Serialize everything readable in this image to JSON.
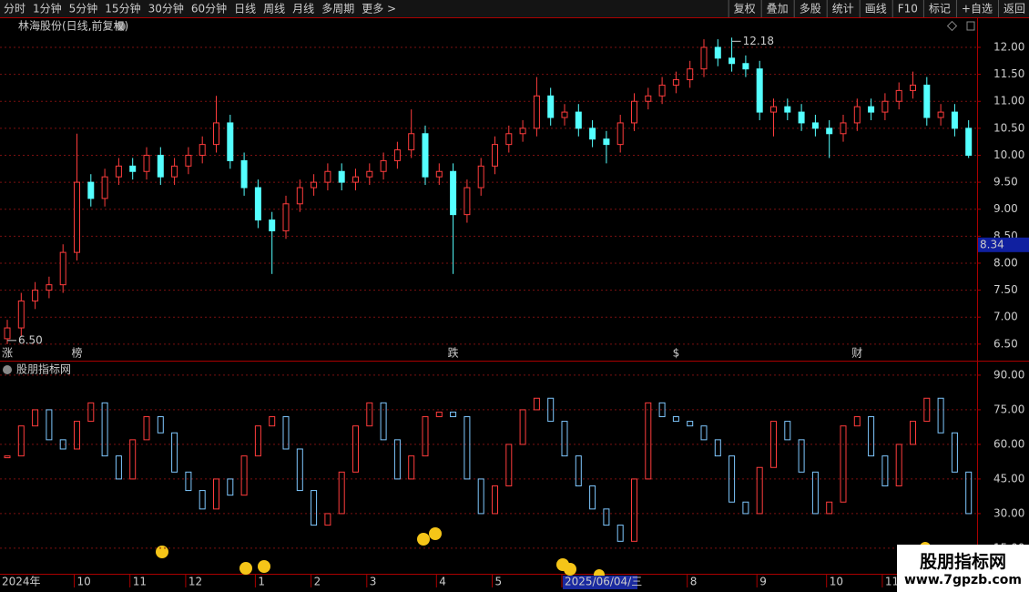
{
  "toolbar": {
    "left": [
      "分时",
      "1分钟",
      "5分钟",
      "15分钟",
      "30分钟",
      "60分钟",
      "日线",
      "周线",
      "月线",
      "多周期",
      "更多 >"
    ],
    "active": 6,
    "right": [
      "复权",
      "叠加",
      "多股",
      "统计",
      "画线",
      "F10",
      "标记",
      "+自选",
      "返回"
    ]
  },
  "watermark": {
    "title": "股朋指标网",
    "url": "www.7gpzb.com"
  },
  "chart_data": [
    {
      "type": "candlestick",
      "title": "林海股份(日线,前复权)",
      "categories": [
        "2024年",
        null,
        null,
        null,
        null,
        "10",
        null,
        null,
        null,
        "11",
        null,
        null,
        null,
        "12",
        null,
        null,
        null,
        null,
        "1",
        null,
        null,
        null,
        "2",
        null,
        null,
        null,
        "3",
        null,
        null,
        null,
        null,
        "4",
        null,
        null,
        null,
        "5",
        null,
        null,
        null,
        null,
        "2025/06/04/三",
        null,
        null,
        null,
        null,
        null,
        null,
        null,
        null,
        "8",
        null,
        null,
        null,
        null,
        "9",
        null,
        null,
        null,
        null,
        "10",
        null,
        null,
        null,
        "11",
        null,
        null,
        null,
        null,
        null,
        null
      ],
      "selected_index": 40,
      "open": [
        6.6,
        6.8,
        7.3,
        7.5,
        7.6,
        8.2,
        9.5,
        9.2,
        9.6,
        9.8,
        9.7,
        10.0,
        9.6,
        9.8,
        10.0,
        10.2,
        10.6,
        9.9,
        9.4,
        8.8,
        8.6,
        9.1,
        9.4,
        9.5,
        9.7,
        9.5,
        9.6,
        9.7,
        9.9,
        10.1,
        10.4,
        9.6,
        9.7,
        8.9,
        9.4,
        9.8,
        10.2,
        10.4,
        10.5,
        11.1,
        10.7,
        10.8,
        10.5,
        10.3,
        10.2,
        10.6,
        11.0,
        11.1,
        11.3,
        11.4,
        11.6,
        12.0,
        11.8,
        11.7,
        11.6,
        10.8,
        10.9,
        10.8,
        10.6,
        10.5,
        10.4,
        10.6,
        10.9,
        10.8,
        11.0,
        11.2,
        11.3,
        10.7,
        10.8,
        10.5
      ],
      "high": [
        6.95,
        7.45,
        7.65,
        7.75,
        8.35,
        10.4,
        9.65,
        9.75,
        9.95,
        9.95,
        10.15,
        10.15,
        9.95,
        10.15,
        10.35,
        11.1,
        10.75,
        10.05,
        9.55,
        8.95,
        9.25,
        9.55,
        9.65,
        9.85,
        9.85,
        9.75,
        9.85,
        10.05,
        10.25,
        10.85,
        10.55,
        9.85,
        9.85,
        9.55,
        9.95,
        10.35,
        10.55,
        10.65,
        11.45,
        11.25,
        10.95,
        10.95,
        10.65,
        10.45,
        10.75,
        11.15,
        11.25,
        11.45,
        11.55,
        11.75,
        12.15,
        12.15,
        12.18,
        11.85,
        11.75,
        11.05,
        11.05,
        10.95,
        10.75,
        10.65,
        10.75,
        11.05,
        11.05,
        11.15,
        11.35,
        11.55,
        11.45,
        10.95,
        10.95,
        10.65
      ],
      "low": [
        6.5,
        6.65,
        7.15,
        7.35,
        7.45,
        8.05,
        9.05,
        9.05,
        9.45,
        9.55,
        9.55,
        9.45,
        9.45,
        9.65,
        9.85,
        10.05,
        9.75,
        9.25,
        8.65,
        7.8,
        8.45,
        8.95,
        9.25,
        9.35,
        9.35,
        9.35,
        9.45,
        9.55,
        9.75,
        9.95,
        9.45,
        9.45,
        7.8,
        8.75,
        9.25,
        9.65,
        10.05,
        10.25,
        10.35,
        10.55,
        10.55,
        10.35,
        10.15,
        9.85,
        10.05,
        10.45,
        10.85,
        10.95,
        11.15,
        11.25,
        11.45,
        11.65,
        11.55,
        11.45,
        10.65,
        10.35,
        10.65,
        10.45,
        10.35,
        9.95,
        10.25,
        10.45,
        10.65,
        10.65,
        10.85,
        11.05,
        10.55,
        10.55,
        10.35,
        9.95
      ],
      "close": [
        6.8,
        7.3,
        7.5,
        7.6,
        8.2,
        9.5,
        9.2,
        9.6,
        9.8,
        9.7,
        10.0,
        9.6,
        9.8,
        10.0,
        10.2,
        10.6,
        9.9,
        9.4,
        8.8,
        8.6,
        9.1,
        9.4,
        9.5,
        9.7,
        9.5,
        9.6,
        9.7,
        9.9,
        10.1,
        10.4,
        9.6,
        9.7,
        8.9,
        9.4,
        9.8,
        10.2,
        10.4,
        10.5,
        11.1,
        10.7,
        10.8,
        10.5,
        10.3,
        10.2,
        10.6,
        11.0,
        11.1,
        11.3,
        11.4,
        11.6,
        12.0,
        11.8,
        11.7,
        11.6,
        10.8,
        10.9,
        10.8,
        10.6,
        10.5,
        10.4,
        10.6,
        10.9,
        10.8,
        11.0,
        11.2,
        11.3,
        10.7,
        10.8,
        10.5,
        10.0
      ],
      "up_color": "#ff3c3c",
      "down_color": "#54ffff",
      "ylim": [
        6.21,
        12.54
      ],
      "yticks": [
        {
          "value": 6.5,
          "label": "6.50"
        },
        {
          "value": 7.0,
          "label": "7.00"
        },
        {
          "value": 7.5,
          "label": "7.50"
        },
        {
          "value": 8.0,
          "label": "8.00"
        },
        {
          "value": 8.5,
          "label": "8.50"
        },
        {
          "value": 9.0,
          "label": "9.00"
        },
        {
          "value": 9.5,
          "label": "9.50"
        },
        {
          "value": 10.0,
          "label": "10.00"
        },
        {
          "value": 10.5,
          "label": "10.50"
        },
        {
          "value": 11.0,
          "label": "11.00"
        },
        {
          "value": 11.5,
          "label": "11.50"
        },
        {
          "value": 12.0,
          "label": "12.00"
        }
      ],
      "grid": true,
      "annotations": [
        {
          "index": 0,
          "label": "6.50"
        },
        {
          "index": 52,
          "label": "12.18"
        }
      ],
      "markers": [
        {
          "index": 0,
          "label": "涨",
          "color": "#ff4040"
        },
        {
          "index": 5,
          "label": "榜",
          "color": "#ff9933"
        },
        {
          "index": 32,
          "label": "跌",
          "color": "#33ff66"
        },
        {
          "index": 48,
          "label": "$",
          "color": "#ff3333"
        },
        {
          "index": 61,
          "label": "财",
          "color": "#66aaff"
        }
      ],
      "cursor_label": {
        "value": 8.34,
        "label": "8.34"
      }
    },
    {
      "type": "box",
      "title": "股朋指标网",
      "values": [
        55,
        68,
        75,
        62,
        58,
        70,
        78,
        55,
        45,
        62,
        72,
        65,
        48,
        40,
        32,
        45,
        38,
        55,
        68,
        72,
        58,
        40,
        25,
        30,
        48,
        68,
        78,
        62,
        45,
        55,
        72,
        74,
        72,
        45,
        30,
        42,
        60,
        75,
        80,
        70,
        55,
        42,
        32,
        25,
        18,
        45,
        78,
        72,
        70,
        68,
        62,
        55,
        35,
        30,
        50,
        70,
        62,
        48,
        30,
        35,
        68,
        72,
        55,
        42,
        60,
        70,
        80,
        65,
        48,
        30
      ],
      "up_color": "#ff3c3c",
      "down_color": "#7fc8ff",
      "ylim": [
        4.7,
        95.5
      ],
      "yticks": [
        {
          "value": 15,
          "label": "15.00"
        },
        {
          "value": 30,
          "label": "30.00"
        },
        {
          "value": 45,
          "label": "45.00"
        },
        {
          "value": 60,
          "label": "60.00"
        },
        {
          "value": 75,
          "label": "75.00"
        },
        {
          "value": 90,
          "label": "90.00"
        }
      ],
      "grid": true
    }
  ]
}
